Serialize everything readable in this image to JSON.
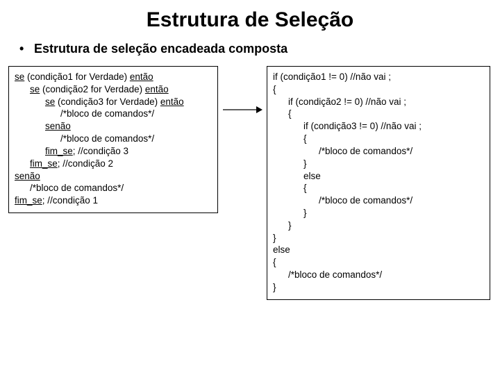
{
  "title": "Estrutura de Seleção",
  "subtitle_bullet": "•",
  "subtitle": "Estrutura de seleção encadeada composta",
  "colors": {
    "background": "#ffffff",
    "text": "#000000",
    "border": "#000000",
    "arrow": "#000000"
  },
  "left_box": {
    "lines": [
      {
        "indent": 0,
        "segments": [
          {
            "t": "se",
            "u": true
          },
          {
            "t": " (condição1 for Verdade) ",
            "u": false
          },
          {
            "t": "então",
            "u": true
          }
        ]
      },
      {
        "indent": 1,
        "segments": [
          {
            "t": "se",
            "u": true
          },
          {
            "t": " (condição2 for Verdade) ",
            "u": false
          },
          {
            "t": "então",
            "u": true
          }
        ]
      },
      {
        "indent": 2,
        "segments": [
          {
            "t": "se",
            "u": true
          },
          {
            "t": " (condição3 for Verdade) ",
            "u": false
          },
          {
            "t": "então",
            "u": true
          }
        ]
      },
      {
        "indent": 3,
        "segments": [
          {
            "t": "/*bloco de comandos*/",
            "u": false
          }
        ]
      },
      {
        "indent": 2,
        "segments": [
          {
            "t": "senão",
            "u": true
          }
        ]
      },
      {
        "indent": 3,
        "segments": [
          {
            "t": "/*bloco de comandos*/",
            "u": false
          }
        ]
      },
      {
        "indent": 2,
        "segments": [
          {
            "t": "fim_se",
            "u": true
          },
          {
            "t": "; //condição 3",
            "u": false
          }
        ]
      },
      {
        "indent": 1,
        "segments": [
          {
            "t": "fim_se",
            "u": true
          },
          {
            "t": "; //condição 2",
            "u": false
          }
        ]
      },
      {
        "indent": 0,
        "segments": [
          {
            "t": "senão",
            "u": true
          }
        ]
      },
      {
        "indent": 1,
        "segments": [
          {
            "t": "/*bloco de comandos*/",
            "u": false
          }
        ]
      },
      {
        "indent": 0,
        "segments": [
          {
            "t": "fim_se",
            "u": true
          },
          {
            "t": "; //condição 1",
            "u": false
          }
        ]
      }
    ]
  },
  "right_box": {
    "lines": [
      {
        "indent": 0,
        "segments": [
          {
            "t": "if (condição1 != 0) //não vai ;",
            "u": false
          }
        ]
      },
      {
        "indent": 0,
        "segments": [
          {
            "t": "{",
            "u": false
          }
        ]
      },
      {
        "indent": 1,
        "segments": [
          {
            "t": "if (condição2 != 0) //não vai ;",
            "u": false
          }
        ]
      },
      {
        "indent": 1,
        "segments": [
          {
            "t": "{",
            "u": false
          }
        ]
      },
      {
        "indent": 2,
        "segments": [
          {
            "t": "if (condição3 != 0) //não vai ;",
            "u": false
          }
        ]
      },
      {
        "indent": 2,
        "segments": [
          {
            "t": "{",
            "u": false
          }
        ]
      },
      {
        "indent": 3,
        "segments": [
          {
            "t": "/*bloco de comandos*/",
            "u": false
          }
        ]
      },
      {
        "indent": 2,
        "segments": [
          {
            "t": "}",
            "u": false
          }
        ]
      },
      {
        "indent": 2,
        "segments": [
          {
            "t": "else",
            "u": false
          }
        ]
      },
      {
        "indent": 2,
        "segments": [
          {
            "t": "{",
            "u": false
          }
        ]
      },
      {
        "indent": 3,
        "segments": [
          {
            "t": "/*bloco de comandos*/",
            "u": false
          }
        ]
      },
      {
        "indent": 2,
        "segments": [
          {
            "t": "}",
            "u": false
          }
        ]
      },
      {
        "indent": 1,
        "segments": [
          {
            "t": "}",
            "u": false
          }
        ]
      },
      {
        "indent": 0,
        "segments": [
          {
            "t": "}",
            "u": false
          }
        ]
      },
      {
        "indent": 0,
        "segments": [
          {
            "t": "else",
            "u": false
          }
        ]
      },
      {
        "indent": 0,
        "segments": [
          {
            "t": "{",
            "u": false
          }
        ]
      },
      {
        "indent": 1,
        "segments": [
          {
            "t": "/*bloco de comandos*/",
            "u": false
          }
        ]
      },
      {
        "indent": 0,
        "segments": [
          {
            "t": "}",
            "u": false
          }
        ]
      }
    ]
  },
  "arrow": {
    "width": 60,
    "height": 14,
    "color": "#000000",
    "stroke_width": 1.2
  }
}
